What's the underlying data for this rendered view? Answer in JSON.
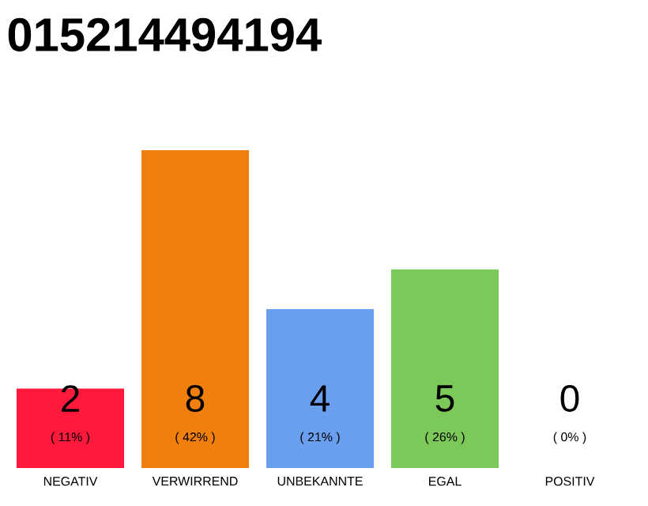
{
  "chart_data": {
    "type": "bar",
    "title": "015214494194",
    "categories": [
      "NEGATIV",
      "VERWIRREND",
      "UNBEKANNTE",
      "EGAL",
      "POSITIV"
    ],
    "values": [
      2,
      8,
      4,
      5,
      0
    ],
    "colors": [
      "#ff1a3c",
      "#f07f0d",
      "#6a9ff0",
      "#7cc95a",
      "#d9d9d9"
    ],
    "data_labels": true,
    "annotations": [
      "( 11% )",
      "( 42% )",
      "( 21% )",
      "( 26% )",
      "( 0% )"
    ]
  }
}
